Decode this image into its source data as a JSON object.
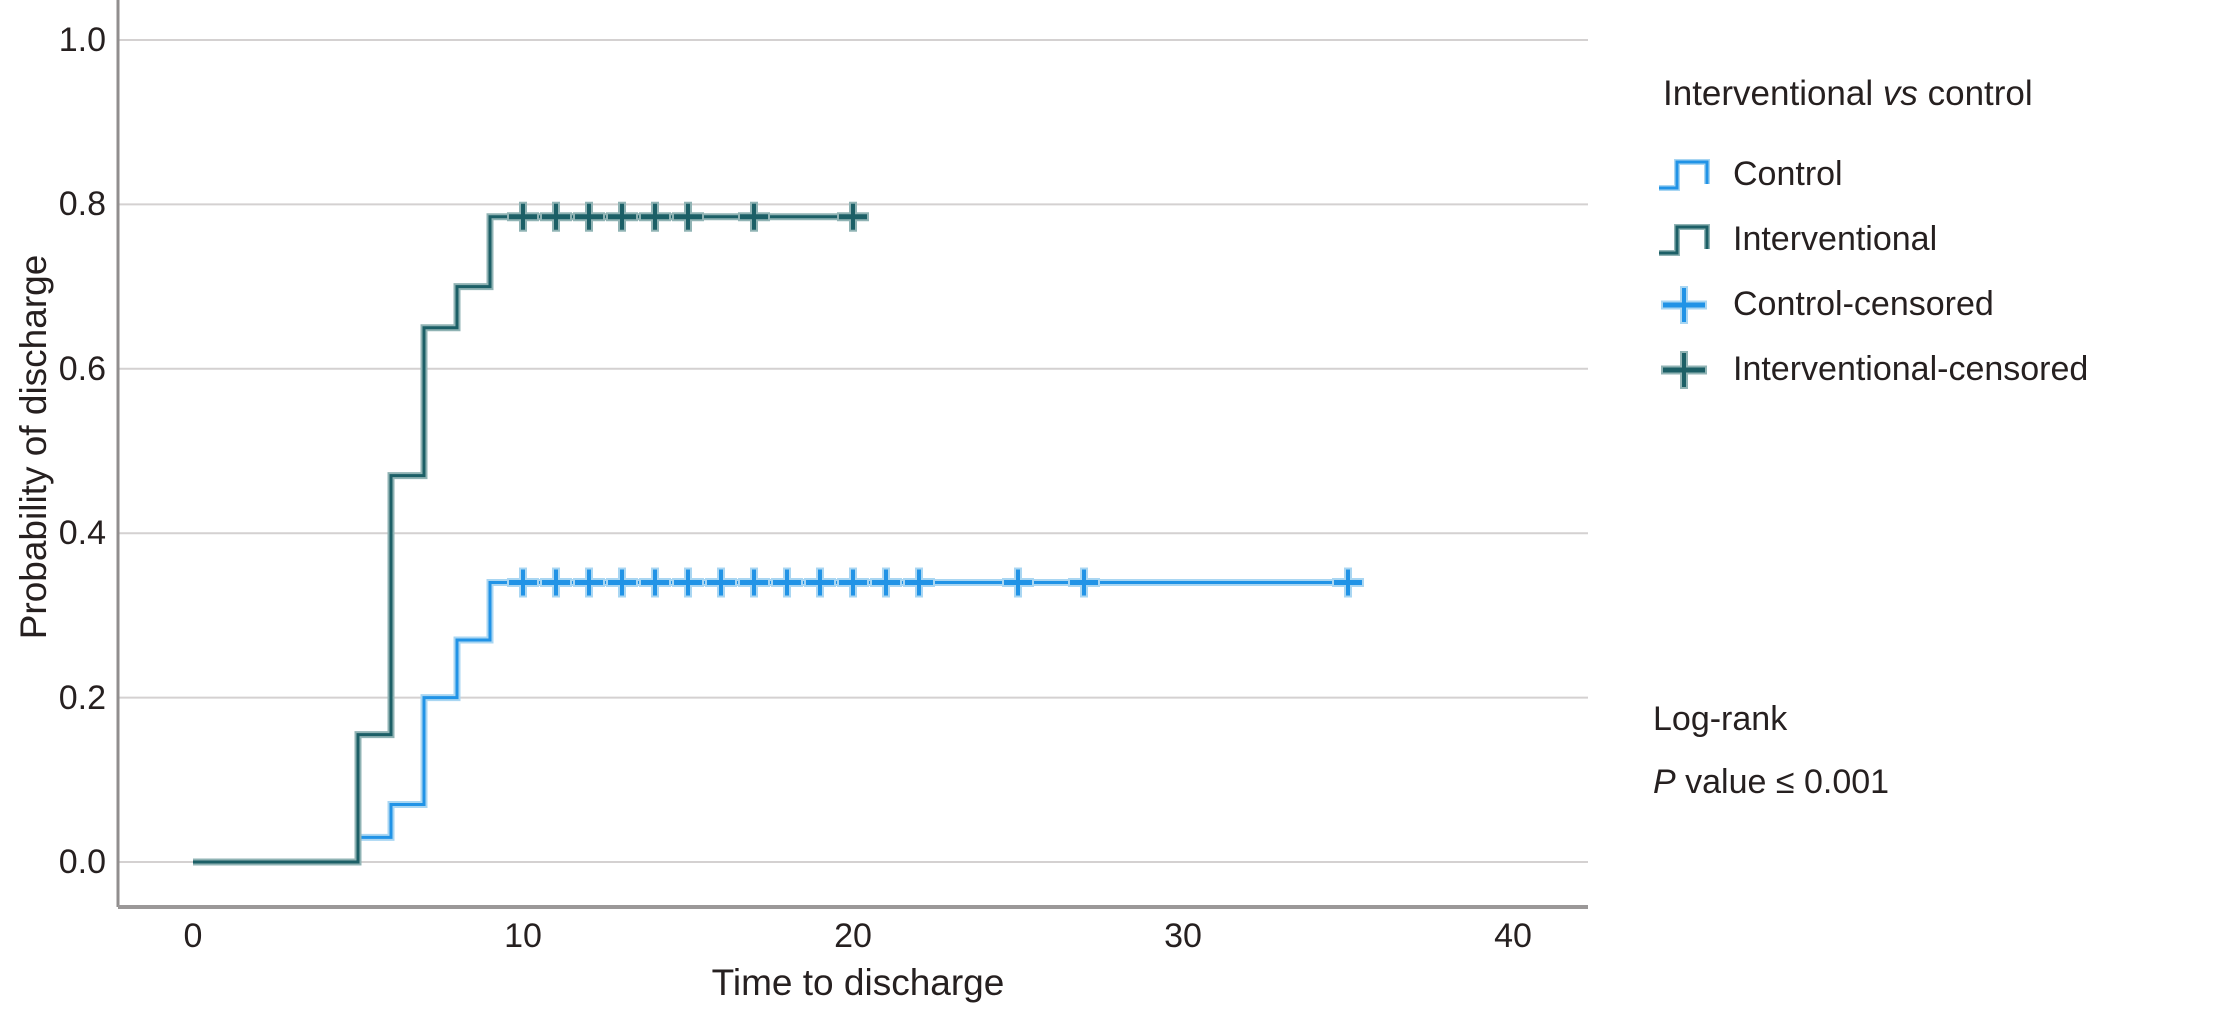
{
  "chart_data": {
    "type": "line",
    "subtype": "kaplan-meier-step",
    "title": "",
    "xlabel": "Time to discharge",
    "ylabel": "Probability of discharge",
    "xlim": [
      -2.3,
      42.3
    ],
    "ylim": [
      0,
      1.05
    ],
    "grid": "horizontal-only",
    "legend_position": "right",
    "x_ticks": [
      {
        "label": "0",
        "value": 0
      },
      {
        "label": "10",
        "value": 10
      },
      {
        "label": "20",
        "value": 20
      },
      {
        "label": "30",
        "value": 30
      },
      {
        "label": "40",
        "value": 40
      }
    ],
    "y_ticks": [
      {
        "label": "1.0",
        "value": 1.0
      },
      {
        "label": "0.8",
        "value": 0.8
      },
      {
        "label": "0.6",
        "value": 0.6
      },
      {
        "label": "0.4",
        "value": 0.4
      },
      {
        "label": "0.2",
        "value": 0.2
      },
      {
        "label": "0.0",
        "value": 0.0
      }
    ],
    "series": [
      {
        "name": "Control",
        "color": "#2193e6",
        "halo": "#a9d6f2",
        "points": [
          [
            0,
            0
          ],
          [
            5,
            0
          ],
          [
            5,
            0.03
          ],
          [
            6,
            0.03
          ],
          [
            6,
            0.07
          ],
          [
            7,
            0.07
          ],
          [
            7,
            0.2
          ],
          [
            8,
            0.2
          ],
          [
            8,
            0.27
          ],
          [
            9,
            0.27
          ],
          [
            9,
            0.34
          ],
          [
            35.4,
            0.34
          ]
        ],
        "censored": {
          "y": 0.34,
          "x": [
            10,
            11,
            12,
            13,
            14,
            15,
            16,
            17,
            18,
            19,
            20,
            21,
            22,
            25,
            27,
            35
          ]
        }
      },
      {
        "name": "Interventional",
        "color": "#1c5f66",
        "halo": "#90b3b4",
        "points": [
          [
            0,
            0
          ],
          [
            5,
            0
          ],
          [
            5,
            0.155
          ],
          [
            6,
            0.155
          ],
          [
            6,
            0.47
          ],
          [
            7,
            0.47
          ],
          [
            7,
            0.65
          ],
          [
            8,
            0.65
          ],
          [
            8,
            0.7
          ],
          [
            9,
            0.7
          ],
          [
            9,
            0.785
          ],
          [
            20.3,
            0.785
          ]
        ],
        "censored": {
          "y": 0.785,
          "x": [
            10,
            11,
            12,
            13,
            14,
            15,
            17,
            20
          ]
        }
      }
    ],
    "legend": {
      "title_pre": "Interventional ",
      "title_italic": "vs",
      "title_post": " control",
      "items": [
        {
          "label": "Control",
          "marker": "step",
          "color": "#2193e6",
          "halo": "#a9d6f2"
        },
        {
          "label": "Interventional",
          "marker": "step",
          "color": "#1c5f66",
          "halo": "#90b3b4"
        },
        {
          "label": "Control-censored",
          "marker": "plus",
          "color": "#2193e6",
          "halo": "#a9d6f2"
        },
        {
          "label": "Interventional-censored",
          "marker": "plus",
          "color": "#1c5f66",
          "halo": "#90b3b4"
        }
      ]
    },
    "annotations": {
      "log_rank": "Log-rank",
      "p_italic": "P",
      "p_rest": " value ≤ 0.001"
    },
    "colors": {
      "grid": "#d4d1d1",
      "axis_left": "#918e8e",
      "axis_bottom": "#9b9898",
      "text": "#262020",
      "background": "#ffffff"
    }
  }
}
